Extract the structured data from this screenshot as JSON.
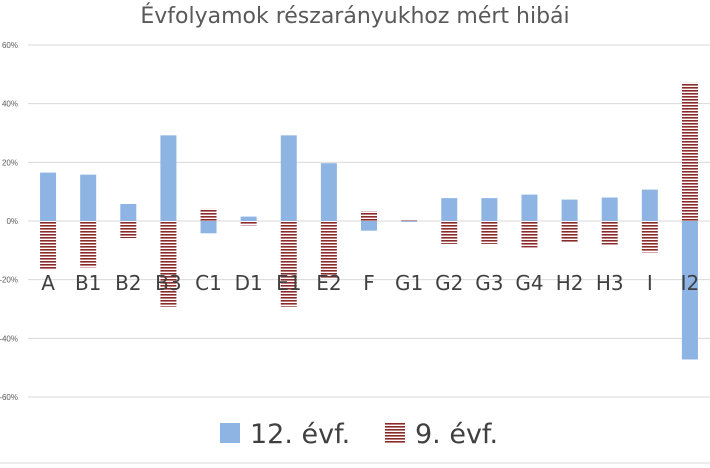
{
  "chart_data": {
    "type": "bar",
    "title": "Évfolyamok részarányukhoz mért hibái",
    "xlabel": "",
    "ylabel": "",
    "categories": [
      "A",
      "B1",
      "B2",
      "B3",
      "C1",
      "D1",
      "E1",
      "E2",
      "F",
      "G1",
      "G2",
      "G3",
      "G4",
      "H2",
      "H3",
      "I",
      "I2"
    ],
    "series": [
      {
        "name": "12. évf.",
        "color": "#8eb4e3",
        "values": [
          16.5,
          15.8,
          5.8,
          29.2,
          -4.2,
          1.5,
          29.2,
          19.7,
          -3.3,
          -0.3,
          7.8,
          7.8,
          9.0,
          7.3,
          8.0,
          10.7,
          -47.2
        ]
      },
      {
        "name": "9. évf.",
        "color": "#8b2a2a",
        "values": [
          -16.5,
          -15.8,
          -5.8,
          -29.2,
          4.2,
          -1.5,
          -29.2,
          -19.7,
          3.3,
          0.3,
          -7.8,
          -7.8,
          -9.0,
          -7.3,
          -8.0,
          -10.7,
          47.2
        ]
      }
    ],
    "ylim": [
      -60,
      60
    ],
    "yticks": [
      "60%",
      "40%",
      "20%",
      "0%",
      "-20%",
      "-40%",
      "-60%"
    ],
    "ytick_values": [
      60,
      40,
      20,
      0,
      -20,
      -40,
      -60
    ],
    "grid": true,
    "legend": "bottom"
  }
}
